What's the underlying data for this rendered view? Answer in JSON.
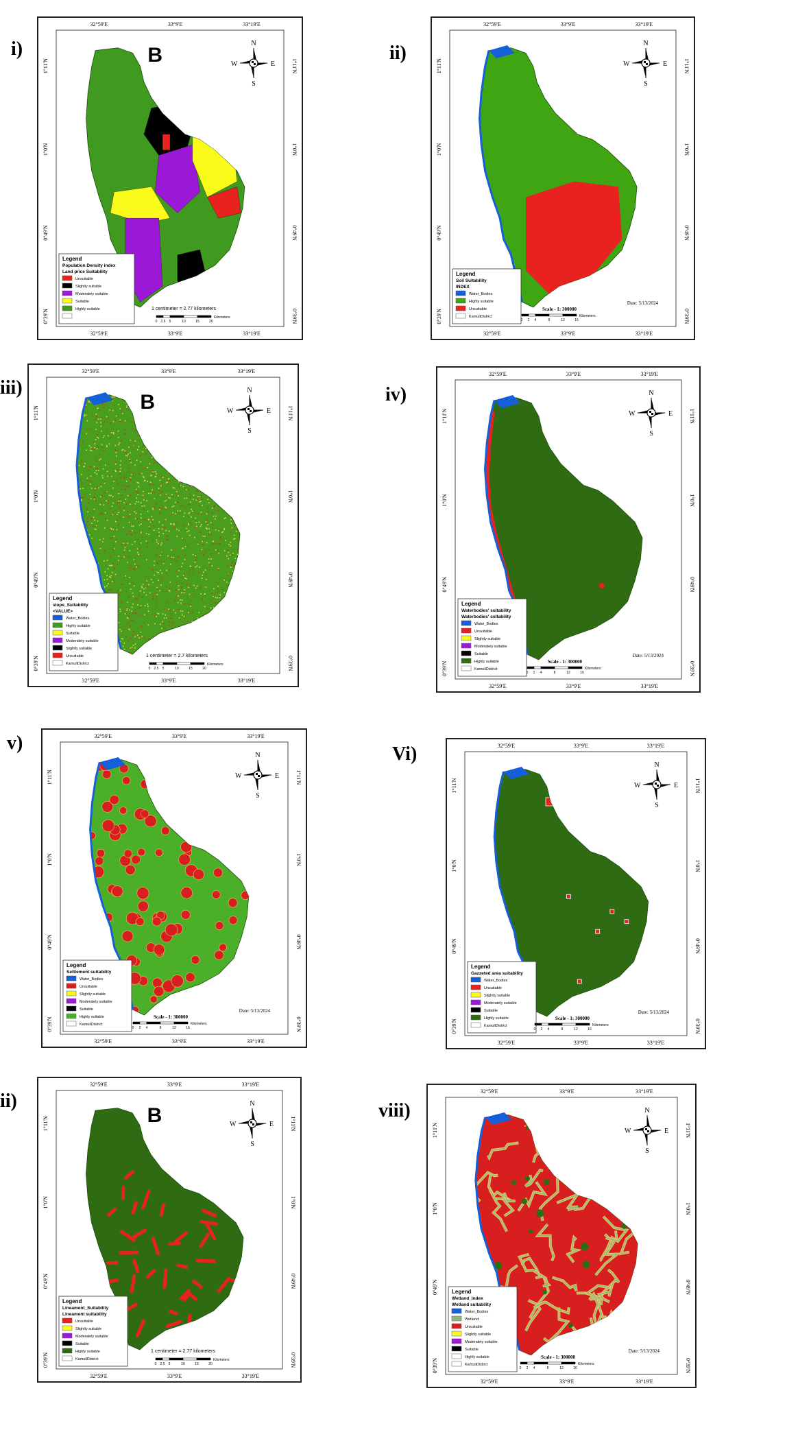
{
  "panels": [
    {
      "label": "i)",
      "big_letter": "B",
      "coord_top": [
        "32°59'E",
        "33°9'E",
        "33°19'E"
      ],
      "coord_bottom": [
        "32°59'E",
        "33°9'E",
        "33°19'E"
      ],
      "coord_left": [
        "1°11'N",
        "1°0'N",
        "0°49'N",
        "0°39'N"
      ],
      "coord_right": [
        "1°11'N",
        "1°0'N",
        "0°49'N",
        "0°39'N"
      ],
      "legend": {
        "title": "Legend",
        "subtitles": [
          "Population Density index",
          "Land price Suitability"
        ],
        "items": [
          {
            "label": "Unsuitable",
            "color": "#e8231f"
          },
          {
            "label": "Slightly suitable",
            "color": "#000000"
          },
          {
            "label": "Moderately suitable",
            "color": "#9b19d6"
          },
          {
            "label": "Suitable",
            "color": "#fbfb1b"
          },
          {
            "label": "Highly suitable",
            "color": "#3f9a1f"
          },
          {
            "label": "",
            "color": "#ffffff"
          }
        ]
      },
      "scale_text": "1 centimeter = 2.77 kilometers",
      "scale_ticks": [
        "0",
        "2.5",
        "5",
        "10",
        "15",
        "20"
      ],
      "scale_unit": "Kilometers",
      "date": ""
    },
    {
      "label": "ii)",
      "big_letter": "",
      "coord_top": [
        "32°59'E",
        "33°9'E",
        "33°19'E"
      ],
      "coord_bottom": [
        "32°59'E",
        "33°9'E",
        "33°19'E"
      ],
      "coord_left": [
        "1°11'N",
        "1°0'N",
        "0°49'N",
        "0°39'N"
      ],
      "coord_right": [
        "1°11'N",
        "1°0'N",
        "0°49'N",
        "0°39'N"
      ],
      "legend": {
        "title": "Legend",
        "subtitles": [
          "Soil Suitability",
          "INDEX"
        ],
        "items": [
          {
            "label": "Water_Bodies",
            "color": "#1560d8"
          },
          {
            "label": "Highly suitable",
            "color": "#3fa513"
          },
          {
            "label": "Unsuitable",
            "color": "#e8231f"
          },
          {
            "label": "KamuliDistrict",
            "color": "#ffffff"
          }
        ]
      },
      "scale_text": "Scale - 1: 300000",
      "scale_ticks": [
        "0",
        "2",
        "4",
        "8",
        "12",
        "16"
      ],
      "scale_unit": "Kilometers",
      "date": "Date: 5/13/2024"
    },
    {
      "label": "iii)",
      "big_letter": "B",
      "coord_top": [
        "32°59'E",
        "33°9'E",
        "33°19'E"
      ],
      "coord_bottom": [
        "32°59'E",
        "33°9'E",
        "33°19'E"
      ],
      "coord_left": [
        "1°11'N",
        "1°0'N",
        "0°49'N",
        "0°39'N"
      ],
      "coord_right": [
        "1°11'N",
        "1°0'N",
        "0°49'N",
        "0°39'N"
      ],
      "legend": {
        "title": "Legend",
        "subtitles": [
          "slope_Suitability",
          "<VALUE>"
        ],
        "items": [
          {
            "label": "Water_Bodies",
            "color": "#1560d8"
          },
          {
            "label": "Highly suitable",
            "color": "#3f9a1f"
          },
          {
            "label": "Suitable",
            "color": "#fbfb1b"
          },
          {
            "label": "Moderately suitable",
            "color": "#9b19d6"
          },
          {
            "label": "Slightly suitable",
            "color": "#000000"
          },
          {
            "label": "Unsuitable",
            "color": "#e8231f"
          },
          {
            "label": "KamuliDistrict",
            "color": "#ffffff"
          }
        ]
      },
      "scale_text": "1 centimeter = 2.7 kilometers",
      "scale_ticks": [
        "0",
        "2.5",
        "5",
        "10",
        "15",
        "20"
      ],
      "scale_unit": "Kilometers",
      "date": ""
    },
    {
      "label": "iv)",
      "big_letter": "",
      "coord_top": [
        "32°59'E",
        "33°9'E",
        "33°19'E"
      ],
      "coord_bottom": [
        "32°59'E",
        "33°9'E",
        "33°19'E"
      ],
      "coord_left": [
        "1°11'N",
        "1°0'N",
        "0°49'N",
        "0°39'N"
      ],
      "coord_right": [
        "1°11'N",
        "1°0'N",
        "0°49'N",
        "0°39'N"
      ],
      "legend": {
        "title": "Legend",
        "subtitles": [
          "Waterbodies' suitability",
          "Waterbodies' suitability"
        ],
        "items": [
          {
            "label": "Water_Bodies",
            "color": "#1560d8"
          },
          {
            "label": "Unsuitable",
            "color": "#e8231f"
          },
          {
            "label": "Slightly suitable",
            "color": "#fbfb1b"
          },
          {
            "label": "Moderately suitable",
            "color": "#9b19d6"
          },
          {
            "label": "Suitable",
            "color": "#000000"
          },
          {
            "label": "Highly suitable",
            "color": "#2e6b12"
          },
          {
            "label": "KamuliDistrict",
            "color": "#ffffff"
          }
        ]
      },
      "scale_text": "Scale - 1: 300000",
      "scale_ticks": [
        "0",
        "2",
        "4",
        "8",
        "12",
        "16"
      ],
      "scale_unit": "Kilometers",
      "date": "Date: 5/13/2024"
    },
    {
      "label": "v)",
      "big_letter": "",
      "coord_top": [
        "32°59'E",
        "33°9'E",
        "33°19'E"
      ],
      "coord_bottom": [
        "32°59'E",
        "33°9'E",
        "33°19'E"
      ],
      "coord_left": [
        "1°11'N",
        "1°0'N",
        "0°49'N",
        "0°39'N"
      ],
      "coord_right": [
        "1°11'N",
        "1°0'N",
        "0°49'N",
        "0°39'N"
      ],
      "legend": {
        "title": "Legend",
        "subtitles": [
          "Settlement suitability"
        ],
        "items": [
          {
            "label": "Water_Bodies",
            "color": "#1560d8"
          },
          {
            "label": "Unsuitable",
            "color": "#d81f1f"
          },
          {
            "label": "Slightly suitable",
            "color": "#fbfb1b"
          },
          {
            "label": "Moderately suitable",
            "color": "#9b19d6"
          },
          {
            "label": "Suitable",
            "color": "#000000"
          },
          {
            "label": "Highly suitable",
            "color": "#4caf2a"
          },
          {
            "label": "KamuliDistrict",
            "color": "#ffffff"
          }
        ]
      },
      "scale_text": "Scale - 1: 300000",
      "scale_ticks": [
        "0",
        "2",
        "4",
        "8",
        "12",
        "16"
      ],
      "scale_unit": "Kilometers",
      "date": "Date: 5/13/2024"
    },
    {
      "label": "Vi)",
      "big_letter": "",
      "coord_top": [
        "32°59'E",
        "33°9'E",
        "33°19'E"
      ],
      "coord_bottom": [
        "32°59'E",
        "33°9'E",
        "33°19'E"
      ],
      "coord_left": [
        "1°11'N",
        "1°0'N",
        "0°49'N",
        "0°39'N"
      ],
      "coord_right": [
        "1°11'N",
        "1°0'N",
        "0°49'N",
        "0°39'N"
      ],
      "legend": {
        "title": "Legend",
        "subtitles": [
          "Gazzeted area suitability"
        ],
        "items": [
          {
            "label": "Water_Bodies",
            "color": "#1560d8"
          },
          {
            "label": "Unsuitable",
            "color": "#e8231f"
          },
          {
            "label": "Slightly suitable",
            "color": "#fbfb1b"
          },
          {
            "label": "Moderately suitable",
            "color": "#9b19d6"
          },
          {
            "label": "Suitable",
            "color": "#000000"
          },
          {
            "label": "Highly suitable",
            "color": "#2e6b12"
          },
          {
            "label": "KamuliDistrict",
            "color": "#ffffff"
          }
        ]
      },
      "scale_text": "Scale - 1: 300000",
      "scale_ticks": [
        "0",
        "2",
        "4",
        "8",
        "12",
        "16"
      ],
      "scale_unit": "Kilometers",
      "date": "Date: 5/13/2024"
    },
    {
      "label": "ii)",
      "big_letter": "B",
      "coord_top": [
        "32°59'E",
        "33°9'E",
        "33°19'E"
      ],
      "coord_bottom": [
        "32°59'E",
        "33°9'E",
        "33°19'E"
      ],
      "coord_left": [
        "1°11'N",
        "1°0'N",
        "0°49'N",
        "0°39'N"
      ],
      "coord_right": [
        "1°11'N",
        "1°0'N",
        "0°49'N",
        "0°39'N"
      ],
      "legend": {
        "title": "Legend",
        "subtitles": [
          "Lineament_Suitability",
          "Lineament suitability"
        ],
        "items": [
          {
            "label": "Unsuitable",
            "color": "#e8231f"
          },
          {
            "label": "Slightly suitable",
            "color": "#fbfb1b"
          },
          {
            "label": "Moderately suitable",
            "color": "#9b19d6"
          },
          {
            "label": "Suitable",
            "color": "#000000"
          },
          {
            "label": "Highly suitable",
            "color": "#2e6b12"
          },
          {
            "label": "KamuliDistrict",
            "color": "#ffffff"
          }
        ]
      },
      "scale_text": "1 centimeter = 2.77 kilometers",
      "scale_ticks": [
        "0",
        "2.5",
        "5",
        "10",
        "15",
        "20"
      ],
      "scale_unit": "Kilometers",
      "date": ""
    },
    {
      "label": "viii)",
      "big_letter": "",
      "coord_top": [
        "32°59'E",
        "33°9'E",
        "33°19'E"
      ],
      "coord_bottom": [
        "32°59'E",
        "33°9'E",
        "33°19'E"
      ],
      "coord_left": [
        "1°11'N",
        "1°0'N",
        "0°49'N",
        "0°39'N"
      ],
      "coord_right": [
        "1°11'N",
        "1°0'N",
        "0°49'N",
        "0°39'N"
      ],
      "legend": {
        "title": "Legend",
        "subtitles": [
          "Wetland_Index",
          "Wetland suitability"
        ],
        "items": [
          {
            "label": "Water_Bodies",
            "color": "#1560d8"
          },
          {
            "label": "Wetland",
            "color": "#8fb87c"
          },
          {
            "label": "Unsuitable",
            "color": "#d81f1f"
          },
          {
            "label": "Slightly suitable",
            "color": "#fbfb1b"
          },
          {
            "label": "Moderately suitable",
            "color": "#9b19d6"
          },
          {
            "label": "Suitable",
            "color": "#000000"
          },
          {
            "label": "Highly suitable",
            "color": "#ffffff"
          },
          {
            "label": "KamuliDistrict",
            "color": "#ffffff"
          }
        ]
      },
      "scale_text": "Scale - 1: 300000",
      "scale_ticks": [
        "0",
        "2",
        "4",
        "8",
        "12",
        "16"
      ],
      "scale_unit": "Kilometers",
      "date": "Date: 5/13/2024"
    }
  ],
  "compass": {
    "n": "N",
    "s": "S",
    "e": "E",
    "w": "W"
  }
}
